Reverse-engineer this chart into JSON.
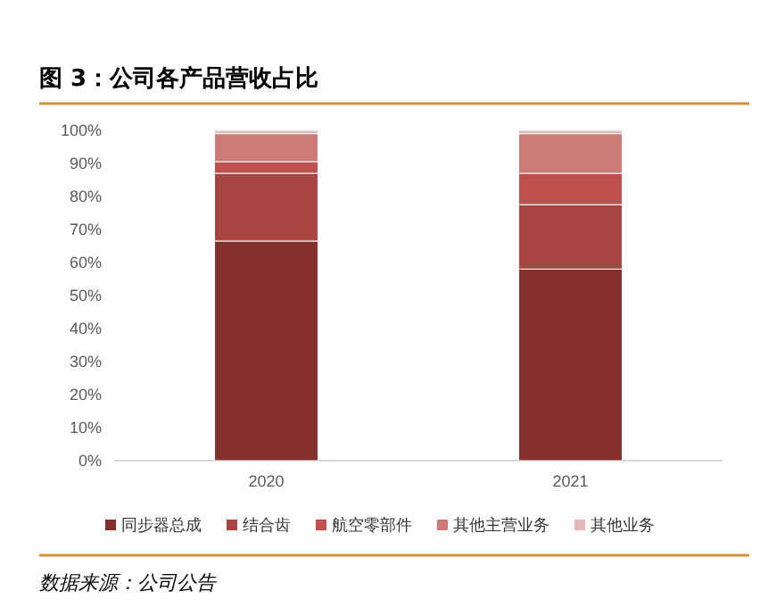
{
  "chart_data": {
    "type": "bar",
    "title": "图 3：公司各产品营收占比",
    "categories": [
      "2020",
      "2021"
    ],
    "stacked": true,
    "series": [
      {
        "name": "同步器总成",
        "color": "#84302f",
        "values": [
          66.5,
          58
        ]
      },
      {
        "name": "结合齿",
        "color": "#a84442",
        "values": [
          20.5,
          19.5
        ]
      },
      {
        "name": "航空零部件",
        "color": "#c0504d",
        "values": [
          3.5,
          9.5
        ]
      },
      {
        "name": "其他主营业务",
        "color": "#cc7b78",
        "values": [
          8.5,
          12
        ]
      },
      {
        "name": "其他业务",
        "color": "#e6b9b8",
        "values": [
          1,
          1
        ]
      }
    ],
    "ylim": [
      0,
      100
    ],
    "yticks": [
      {
        "value": 0,
        "label": "0%"
      },
      {
        "value": 10,
        "label": "10%"
      },
      {
        "value": 20,
        "label": "20%"
      },
      {
        "value": 30,
        "label": "30%"
      },
      {
        "value": 40,
        "label": "40%"
      },
      {
        "value": 50,
        "label": "50%"
      },
      {
        "value": 60,
        "label": "60%"
      },
      {
        "value": 70,
        "label": "70%"
      },
      {
        "value": 80,
        "label": "80%"
      },
      {
        "value": 90,
        "label": "90%"
      },
      {
        "value": 100,
        "label": "100%"
      }
    ],
    "legend": "bottom",
    "annotations": [
      "数据来源：公司公告"
    ]
  }
}
